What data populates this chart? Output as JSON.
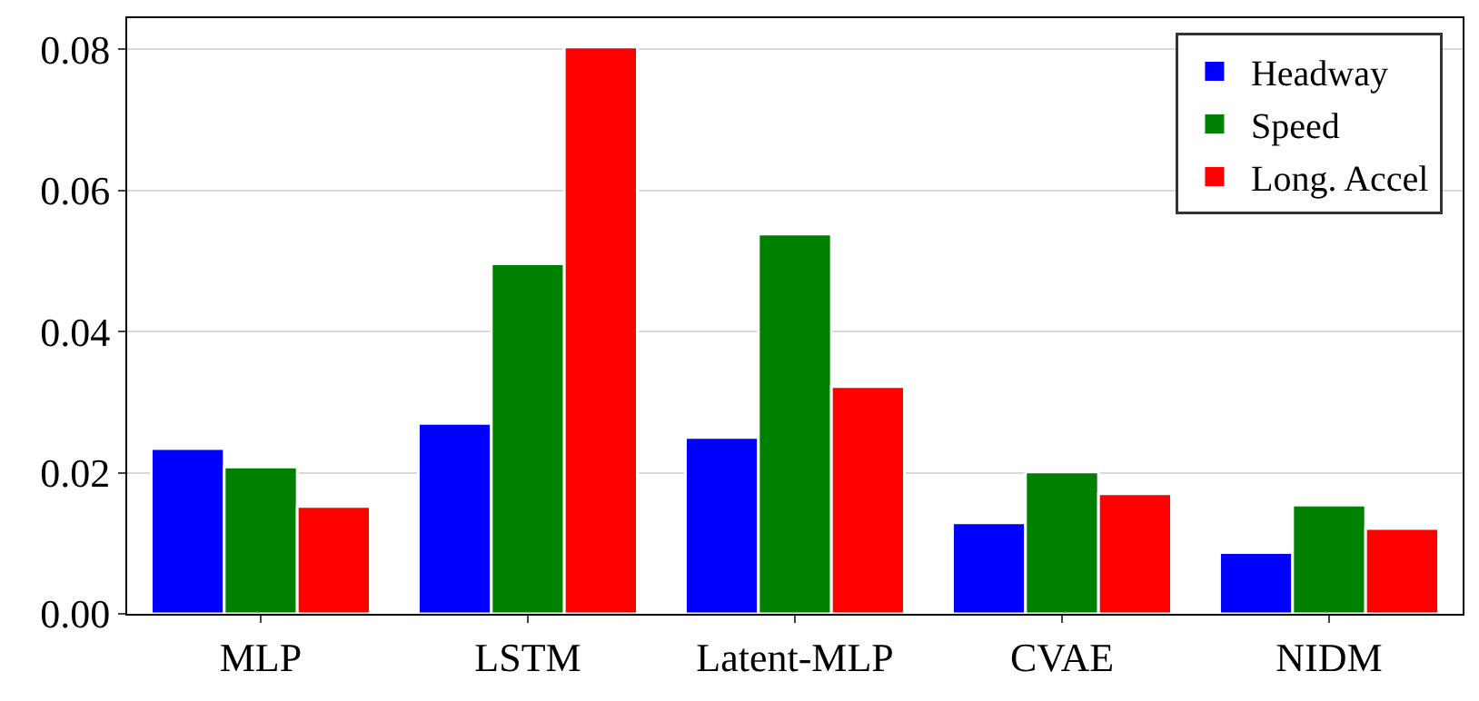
{
  "chart_data": {
    "type": "bar",
    "categories": [
      "MLP",
      "LSTM",
      "Latent-MLP",
      "CVAE",
      "NIDM"
    ],
    "series": [
      {
        "name": "Headway",
        "color": "#0000ff",
        "values": [
          0.0234,
          0.027,
          0.025,
          0.0129,
          0.0087
        ]
      },
      {
        "name": "Speed",
        "color": "#008000",
        "values": [
          0.0208,
          0.0496,
          0.0538,
          0.0201,
          0.0154
        ]
      },
      {
        "name": "Long. Accel",
        "color": "#ff0000",
        "values": [
          0.0152,
          0.0803,
          0.0322,
          0.017,
          0.0121
        ]
      }
    ],
    "ylim": [
      0,
      0.0844
    ],
    "yticks": [
      {
        "value": 0,
        "label": "0.00"
      },
      {
        "value": 0.02,
        "label": "0.02"
      },
      {
        "value": 0.04,
        "label": "0.04"
      },
      {
        "value": 0.06,
        "label": "0.06"
      },
      {
        "value": 0.08,
        "label": "0.08"
      }
    ],
    "grid": "y",
    "legend": "top right"
  }
}
